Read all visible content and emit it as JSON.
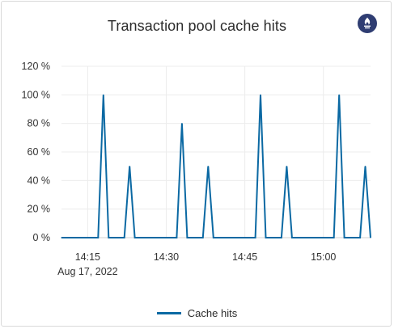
{
  "panel": {
    "title": "Transaction pool cache hits",
    "badge_icon": "prometheus-icon",
    "badge_color": "#2f3d72"
  },
  "chart_data": {
    "type": "line",
    "title": "Transaction pool cache hits",
    "xlabel": "",
    "ylabel": "",
    "y_unit": "%",
    "ylim": [
      0,
      120
    ],
    "y_ticks": [
      "0 %",
      "20 %",
      "40 %",
      "60 %",
      "80 %",
      "100 %",
      "120 %"
    ],
    "x_ticks": [
      {
        "time": "14:15",
        "label": "14:15",
        "sublabel": "Aug 17, 2022"
      },
      {
        "time": "14:30",
        "label": "14:30",
        "sublabel": ""
      },
      {
        "time": "14:45",
        "label": "14:45",
        "sublabel": ""
      },
      {
        "time": "15:00",
        "label": "15:00",
        "sublabel": ""
      }
    ],
    "xlim": [
      "14:10",
      "15:09"
    ],
    "grid": true,
    "legend_position": "bottom",
    "series": [
      {
        "name": "Cache hits",
        "color": "#0b69a3",
        "points": [
          [
            "14:10",
            0
          ],
          [
            "14:17",
            0
          ],
          [
            "14:18",
            100
          ],
          [
            "14:19",
            0
          ],
          [
            "14:22",
            0
          ],
          [
            "14:23",
            50
          ],
          [
            "14:24",
            0
          ],
          [
            "14:32",
            0
          ],
          [
            "14:33",
            80
          ],
          [
            "14:34",
            0
          ],
          [
            "14:37",
            0
          ],
          [
            "14:38",
            50
          ],
          [
            "14:39",
            0
          ],
          [
            "14:47",
            0
          ],
          [
            "14:48",
            100
          ],
          [
            "14:49",
            0
          ],
          [
            "14:52",
            0
          ],
          [
            "14:53",
            50
          ],
          [
            "14:54",
            0
          ],
          [
            "15:02",
            0
          ],
          [
            "15:03",
            100
          ],
          [
            "15:04",
            0
          ],
          [
            "15:07",
            0
          ],
          [
            "15:08",
            50
          ],
          [
            "15:09",
            0
          ]
        ]
      }
    ]
  }
}
